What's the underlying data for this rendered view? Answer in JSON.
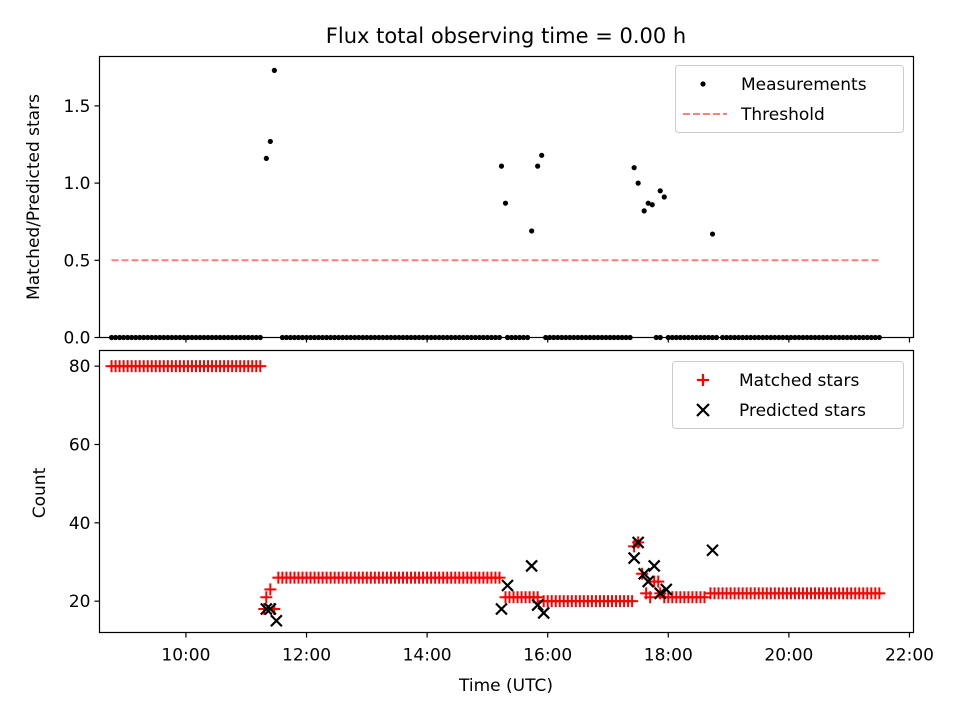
{
  "figure": {
    "title": "Flux total observing time = 0.00 h"
  },
  "chart_data": [
    {
      "type": "scatter",
      "ylabel": "Matched/Predicted stars",
      "xlim": [
        "08:34",
        "22:04"
      ],
      "ylim": [
        0,
        1.82
      ],
      "yticks": [
        "0.0",
        "0.5",
        "1.0",
        "1.5"
      ],
      "legend_position": "upper right",
      "grid": false,
      "series": [
        {
          "name": "Measurements",
          "marker": "dot",
          "color": "#000000",
          "zero_runs": [
            [
              "08:46",
              "11:16"
            ],
            [
              "11:36",
              "15:14"
            ],
            [
              "15:20",
              "15:40"
            ],
            [
              "15:58",
              "17:24"
            ],
            [
              "17:48",
              "17:52"
            ],
            [
              "18:00",
              "18:48"
            ],
            [
              "18:54",
              "21:32"
            ]
          ],
          "zero_run_step_min": 4,
          "points": [
            {
              "x": "11:20",
              "y": 1.16
            },
            {
              "x": "11:24",
              "y": 1.27
            },
            {
              "x": "11:28",
              "y": 1.73
            },
            {
              "x": "15:14",
              "y": 1.11
            },
            {
              "x": "15:18",
              "y": 0.87
            },
            {
              "x": "15:44",
              "y": 0.69
            },
            {
              "x": "15:50",
              "y": 1.11
            },
            {
              "x": "15:54",
              "y": 1.18
            },
            {
              "x": "17:26",
              "y": 1.1
            },
            {
              "x": "17:30",
              "y": 1.0
            },
            {
              "x": "17:36",
              "y": 0.82
            },
            {
              "x": "17:40",
              "y": 0.87
            },
            {
              "x": "17:44",
              "y": 0.86
            },
            {
              "x": "17:52",
              "y": 0.95
            },
            {
              "x": "17:56",
              "y": 0.91
            },
            {
              "x": "18:44",
              "y": 0.67
            }
          ]
        },
        {
          "name": "Threshold",
          "style": "dashed",
          "color": "#ff7f7f",
          "x_range": [
            "08:46",
            "21:32"
          ],
          "value": 0.5
        }
      ]
    },
    {
      "type": "scatter",
      "xlabel": "Time (UTC)",
      "ylabel": "Count",
      "xlim": [
        "08:34",
        "22:04"
      ],
      "ylim": [
        12,
        84
      ],
      "yticks": [
        "20",
        "40",
        "60",
        "80"
      ],
      "xticks": [
        "10:00",
        "12:00",
        "14:00",
        "16:00",
        "18:00",
        "20:00",
        "22:00"
      ],
      "legend_position": "upper right",
      "grid": false,
      "series": [
        {
          "name": "Matched stars",
          "marker": "plus",
          "color": "#ff0000",
          "runs": [
            {
              "from": "08:46",
              "to": "11:16",
              "value": 80
            },
            {
              "from": "11:32",
              "to": "15:12",
              "value": 26
            },
            {
              "from": "15:18",
              "to": "15:52",
              "value": 21
            },
            {
              "from": "15:56",
              "to": "17:24",
              "value": 20
            },
            {
              "from": "17:56",
              "to": "18:36",
              "value": 21
            },
            {
              "from": "18:42",
              "to": "21:32",
              "value": 22
            }
          ],
          "run_step_min": 4,
          "points": [
            {
              "x": "11:18",
              "y": 18
            },
            {
              "x": "11:20",
              "y": 21
            },
            {
              "x": "11:24",
              "y": 23
            },
            {
              "x": "11:28",
              "y": 18
            },
            {
              "x": "17:26",
              "y": 34
            },
            {
              "x": "17:30",
              "y": 35
            },
            {
              "x": "17:34",
              "y": 27
            },
            {
              "x": "17:38",
              "y": 22
            },
            {
              "x": "17:42",
              "y": 21
            },
            {
              "x": "17:46",
              "y": 25
            },
            {
              "x": "17:50",
              "y": 25
            },
            {
              "x": "17:52",
              "y": 22
            }
          ]
        },
        {
          "name": "Predicted stars",
          "marker": "x",
          "color": "#000000",
          "points": [
            {
              "x": "11:20",
              "y": 18
            },
            {
              "x": "11:24",
              "y": 18
            },
            {
              "x": "11:30",
              "y": 15
            },
            {
              "x": "15:14",
              "y": 18
            },
            {
              "x": "15:20",
              "y": 24
            },
            {
              "x": "15:44",
              "y": 29
            },
            {
              "x": "15:50",
              "y": 19
            },
            {
              "x": "15:56",
              "y": 17
            },
            {
              "x": "17:26",
              "y": 31
            },
            {
              "x": "17:30",
              "y": 35
            },
            {
              "x": "17:36",
              "y": 27
            },
            {
              "x": "17:40",
              "y": 25
            },
            {
              "x": "17:46",
              "y": 29
            },
            {
              "x": "17:52",
              "y": 22
            },
            {
              "x": "17:58",
              "y": 23
            },
            {
              "x": "18:44",
              "y": 33
            }
          ]
        }
      ]
    }
  ]
}
